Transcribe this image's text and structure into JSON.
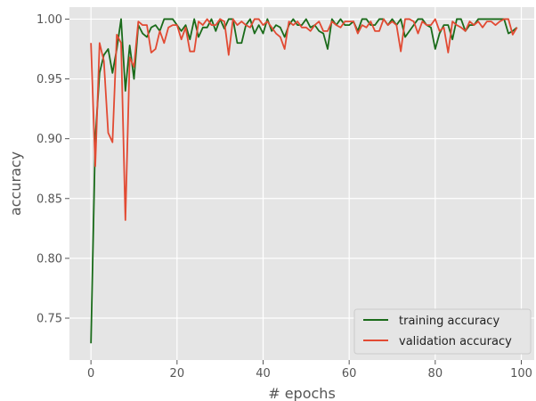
{
  "chart_data": {
    "type": "line",
    "title": "",
    "xlabel": "# epochs",
    "ylabel": "accuracy",
    "xlim": [
      -5,
      103
    ],
    "ylim": [
      0.715,
      1.01
    ],
    "x_ticks": [
      0,
      20,
      40,
      60,
      80,
      100
    ],
    "y_ticks": [
      0.75,
      0.8,
      0.85,
      0.9,
      0.95,
      1.0
    ],
    "x_tick_labels": [
      "0",
      "20",
      "40",
      "60",
      "80",
      "100"
    ],
    "y_tick_labels": [
      "0.75",
      "0.80",
      "0.85",
      "0.90",
      "0.95",
      "1.00"
    ],
    "grid": true,
    "legend_position": "lower-right",
    "series": [
      {
        "name": "training accuracy",
        "color": "#1a6b1a",
        "x": [
          0,
          1,
          2,
          3,
          4,
          5,
          6,
          7,
          8,
          9,
          10,
          11,
          12,
          13,
          14,
          15,
          16,
          17,
          18,
          19,
          20,
          21,
          22,
          23,
          24,
          25,
          26,
          27,
          28,
          29,
          30,
          31,
          32,
          33,
          34,
          35,
          36,
          37,
          38,
          39,
          40,
          41,
          42,
          43,
          44,
          45,
          46,
          47,
          48,
          49,
          50,
          51,
          52,
          53,
          54,
          55,
          56,
          57,
          58,
          59,
          60,
          61,
          62,
          63,
          64,
          65,
          66,
          67,
          68,
          69,
          70,
          71,
          72,
          73,
          74,
          75,
          76,
          77,
          78,
          79,
          80,
          81,
          82,
          83,
          84,
          85,
          86,
          87,
          88,
          89,
          90,
          91,
          92,
          93,
          94,
          95,
          96,
          97,
          98,
          99
        ],
        "values": [
          0.729,
          0.9,
          0.955,
          0.97,
          0.975,
          0.955,
          0.975,
          1.0,
          0.94,
          0.978,
          0.95,
          0.995,
          0.988,
          0.985,
          0.993,
          0.995,
          0.99,
          1.0,
          1.0,
          1.0,
          0.995,
          0.99,
          0.995,
          0.983,
          1.0,
          0.985,
          0.993,
          0.993,
          1.0,
          0.99,
          1.0,
          0.992,
          1.0,
          1.0,
          0.98,
          0.98,
          0.995,
          1.0,
          0.988,
          0.995,
          0.988,
          1.0,
          0.99,
          0.995,
          0.993,
          0.985,
          0.995,
          1.0,
          0.995,
          0.995,
          1.0,
          0.993,
          0.995,
          0.99,
          0.988,
          0.975,
          1.0,
          0.995,
          1.0,
          0.995,
          0.995,
          0.998,
          0.99,
          1.0,
          1.0,
          0.995,
          0.995,
          1.0,
          1.0,
          0.995,
          1.0,
          0.995,
          1.0,
          0.985,
          0.99,
          0.995,
          1.0,
          1.0,
          0.995,
          0.993,
          0.975,
          0.988,
          0.995,
          0.995,
          0.983,
          1.0,
          1.0,
          0.99,
          0.995,
          0.995,
          1.0,
          1.0,
          1.0,
          1.0,
          1.0,
          1.0,
          1.0,
          0.988,
          0.99,
          0.993
        ]
      },
      {
        "name": "validation accuracy",
        "color": "#e24a33",
        "x": [
          0,
          1,
          2,
          3,
          4,
          5,
          6,
          7,
          8,
          9,
          10,
          11,
          12,
          13,
          14,
          15,
          16,
          17,
          18,
          19,
          20,
          21,
          22,
          23,
          24,
          25,
          26,
          27,
          28,
          29,
          30,
          31,
          32,
          33,
          34,
          35,
          36,
          37,
          38,
          39,
          40,
          41,
          42,
          43,
          44,
          45,
          46,
          47,
          48,
          49,
          50,
          51,
          52,
          53,
          54,
          55,
          56,
          57,
          58,
          59,
          60,
          61,
          62,
          63,
          64,
          65,
          66,
          67,
          68,
          69,
          70,
          71,
          72,
          73,
          74,
          75,
          76,
          77,
          78,
          79,
          80,
          81,
          82,
          83,
          84,
          85,
          86,
          87,
          88,
          89,
          90,
          91,
          92,
          93,
          94,
          95,
          96,
          97,
          98,
          99
        ],
        "values": [
          0.98,
          0.877,
          0.98,
          0.965,
          0.905,
          0.897,
          0.987,
          0.98,
          0.832,
          0.968,
          0.96,
          0.998,
          0.995,
          0.995,
          0.972,
          0.975,
          0.99,
          0.98,
          0.993,
          0.995,
          0.995,
          0.983,
          0.993,
          0.973,
          0.973,
          0.998,
          0.995,
          1.0,
          0.995,
          0.995,
          1.0,
          0.998,
          0.97,
          1.0,
          0.995,
          0.998,
          0.995,
          0.993,
          1.0,
          1.0,
          0.995,
          0.998,
          0.993,
          0.988,
          0.985,
          0.975,
          0.998,
          0.995,
          0.998,
          0.993,
          0.993,
          0.99,
          0.995,
          0.998,
          0.99,
          0.99,
          0.998,
          0.995,
          0.993,
          0.998,
          0.998,
          0.998,
          0.988,
          0.995,
          0.993,
          0.998,
          0.99,
          0.99,
          1.0,
          0.995,
          0.998,
          0.995,
          0.973,
          1.0,
          1.0,
          0.998,
          0.988,
          0.998,
          0.995,
          0.995,
          1.0,
          0.99,
          0.993,
          0.972,
          0.998,
          0.995,
          0.993,
          0.99,
          0.998,
          0.995,
          0.998,
          0.993,
          0.998,
          0.998,
          0.995,
          0.998,
          1.0,
          1.0,
          0.987,
          0.993
        ]
      }
    ]
  }
}
